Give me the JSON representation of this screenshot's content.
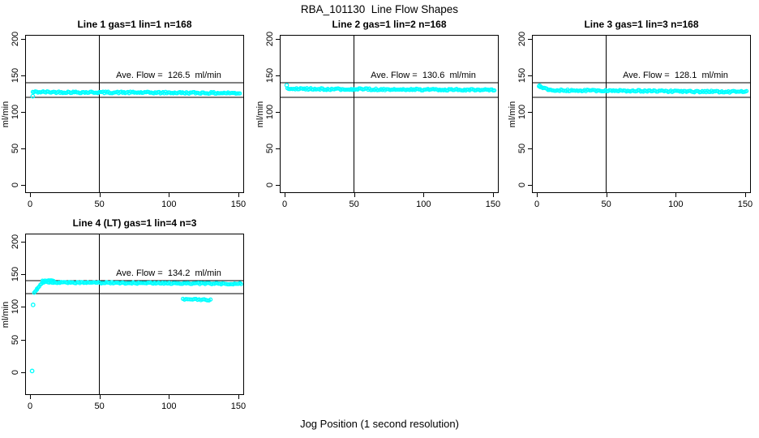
{
  "chart_data": {
    "type": "scatter",
    "title": "RBA_101130  Line Flow Shapes",
    "xlabel": "Jog Position (1 second resolution)",
    "ylabel": "ml/min",
    "point_color": "#00ffff",
    "axis_color": "#000000",
    "x_ticks": [
      0,
      50,
      100,
      150
    ],
    "y_ticks": [
      0,
      50,
      100,
      150,
      200
    ],
    "xlim": [
      -4,
      156
    ],
    "ylim": [
      0,
      200
    ],
    "grid": false,
    "reference_lines": {
      "horizontal": [
        140,
        120
      ],
      "vertical_x": 50
    },
    "plots": [
      {
        "id": "line1",
        "title": "Line 1 gas=1 lin=1 n=168",
        "gas": 1,
        "lin": 1,
        "n": 168,
        "ave_flow": 126.5,
        "annotation": "Ave. Flow =  126.5  ml/min",
        "series_segments": [
          {
            "x_start": 2,
            "x_end": 151,
            "v_start": 127.2,
            "v_end": 125.7,
            "n": 160,
            "jitter": 1.2
          }
        ],
        "extra_points": [
          {
            "x": 2,
            "v": 121.5
          }
        ]
      },
      {
        "id": "line2",
        "title": "Line 2 gas=1 lin=2 n=168",
        "gas": 1,
        "lin": 2,
        "n": 168,
        "ave_flow": 130.6,
        "annotation": "Ave. Flow =  130.6  ml/min",
        "series_segments": [
          {
            "x_start": 2,
            "x_end": 151,
            "v_start": 131.5,
            "v_end": 130.0,
            "n": 160,
            "jitter": 1.2
          }
        ],
        "extra_points": [
          {
            "x": 1.5,
            "v": 136.5
          }
        ]
      },
      {
        "id": "line3",
        "title": "Line 3 gas=1 lin=3 n=168",
        "gas": 1,
        "lin": 3,
        "n": 168,
        "ave_flow": 128.1,
        "annotation": "Ave. Flow =  128.1  ml/min",
        "series_segments": [
          {
            "x_start": 1.5,
            "x_end": 9,
            "v_start": 134.5,
            "v_end": 130.0,
            "n": 9,
            "jitter": 0.8
          },
          {
            "x_start": 9,
            "x_end": 151,
            "v_start": 129.6,
            "v_end": 127.4,
            "n": 152,
            "jitter": 1.2
          }
        ],
        "extra_points": [
          {
            "x": 2,
            "v": 136
          }
        ]
      },
      {
        "id": "line4",
        "title": "Line 4 (LT) gas=1 lin=4 n=3",
        "gas": 1,
        "lin": 4,
        "n": 3,
        "ave_flow": 134.2,
        "annotation": "Ave. Flow =  134.2  ml/min",
        "series_segments": [
          {
            "x_start": 3,
            "x_end": 5,
            "v_start": 121.5,
            "v_end": 126.5,
            "n": 4,
            "jitter": 0.7
          },
          {
            "x_start": 5,
            "x_end": 9,
            "v_start": 128.0,
            "v_end": 137.0,
            "n": 6,
            "jitter": 1.0
          },
          {
            "x_start": 9,
            "x_end": 17,
            "v_start": 139.3,
            "v_end": 140.3,
            "n": 10,
            "jitter": 0.8
          },
          {
            "x_start": 9,
            "x_end": 152,
            "v_start": 137.6,
            "v_end": 135.2,
            "n": 150,
            "jitter": 1.1
          },
          {
            "x_start": 110,
            "x_end": 130,
            "v_start": 112.0,
            "v_end": 110.5,
            "n": 18,
            "jitter": 1.0
          }
        ],
        "extra_points": [
          {
            "x": 1.5,
            "v": 2
          },
          {
            "x": 2.2,
            "v": 103
          }
        ]
      }
    ]
  }
}
